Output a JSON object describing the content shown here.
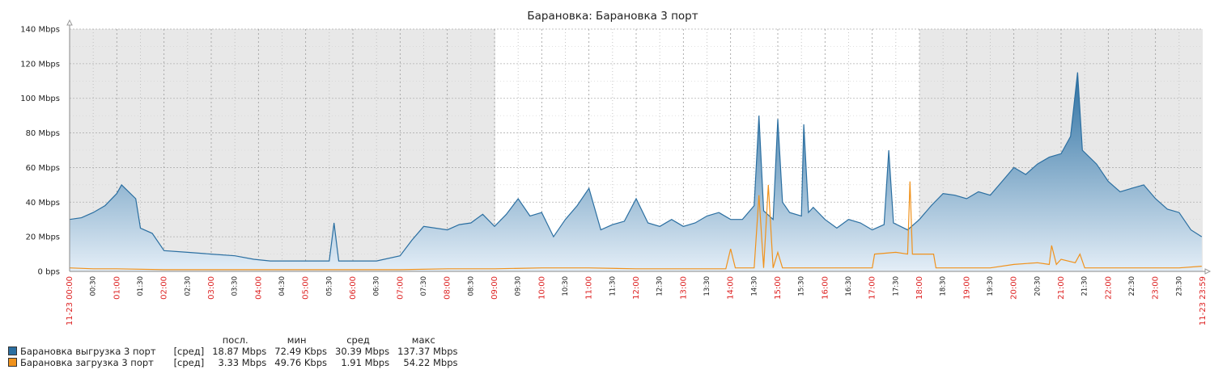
{
  "chart_data": {
    "type": "area",
    "title": "Барановка: Барановка 3 порт",
    "y_axis": {
      "min": 0,
      "max": 140,
      "unit": "Mbps",
      "ticks": [
        {
          "value": 0,
          "label": "0 bps"
        },
        {
          "value": 20,
          "label": "20 Mbps"
        },
        {
          "value": 40,
          "label": "40 Mbps"
        },
        {
          "value": 60,
          "label": "60 Mbps"
        },
        {
          "value": 80,
          "label": "80 Mbps"
        },
        {
          "value": 100,
          "label": "100 Mbps"
        },
        {
          "value": 120,
          "label": "120 Mbps"
        },
        {
          "value": 140,
          "label": "140 Mbps"
        }
      ]
    },
    "x_axis": {
      "min_hours": 0,
      "max_hours": 24,
      "start_label": "11-23 00:00",
      "end_label": "11-23 23:59",
      "tick_labels": [
        "00:30",
        "01:00",
        "01:30",
        "02:00",
        "02:30",
        "03:00",
        "03:30",
        "04:00",
        "04:30",
        "05:00",
        "05:30",
        "06:00",
        "06:30",
        "07:00",
        "07:30",
        "08:00",
        "08:30",
        "09:00",
        "09:30",
        "10:00",
        "10:30",
        "11:00",
        "11:30",
        "12:00",
        "12:30",
        "13:00",
        "13:30",
        "14:00",
        "14:30",
        "15:00",
        "15:30",
        "16:00",
        "16:30",
        "17:00",
        "17:30",
        "18:00",
        "18:30",
        "19:00",
        "19:30",
        "20:00",
        "20:30",
        "21:00",
        "21:30",
        "22:00",
        "22:30",
        "23:00",
        "23:30"
      ]
    },
    "shaded_periods": [
      {
        "from": "00:00",
        "to": "09:00"
      },
      {
        "from": "18:00",
        "to": "23:59"
      }
    ],
    "grid": true,
    "series": [
      {
        "name": "Барановка выгрузка 3 порт",
        "color": "#2b6fa1",
        "fill": "gradient-blue",
        "points": [
          [
            0,
            30
          ],
          [
            0.25,
            31
          ],
          [
            0.5,
            34
          ],
          [
            0.75,
            38
          ],
          [
            1,
            45
          ],
          [
            1.1,
            50
          ],
          [
            1.25,
            46
          ],
          [
            1.4,
            42
          ],
          [
            1.5,
            25
          ],
          [
            1.75,
            22
          ],
          [
            2,
            12
          ],
          [
            2.5,
            11
          ],
          [
            3,
            10
          ],
          [
            3.5,
            9
          ],
          [
            3.9,
            7
          ],
          [
            4.25,
            6
          ],
          [
            4.5,
            6
          ],
          [
            5,
            6
          ],
          [
            5.5,
            6
          ],
          [
            5.6,
            28
          ],
          [
            5.7,
            6
          ],
          [
            6,
            6
          ],
          [
            6.5,
            6
          ],
          [
            7,
            9
          ],
          [
            7.25,
            18
          ],
          [
            7.5,
            26
          ],
          [
            8,
            24
          ],
          [
            8.25,
            27
          ],
          [
            8.5,
            28
          ],
          [
            8.75,
            33
          ],
          [
            9,
            26
          ],
          [
            9.25,
            33
          ],
          [
            9.5,
            42
          ],
          [
            9.75,
            32
          ],
          [
            10,
            34
          ],
          [
            10.25,
            20
          ],
          [
            10.5,
            30
          ],
          [
            10.75,
            38
          ],
          [
            11,
            48
          ],
          [
            11.25,
            24
          ],
          [
            11.5,
            27
          ],
          [
            11.75,
            29
          ],
          [
            12,
            42
          ],
          [
            12.25,
            28
          ],
          [
            12.5,
            26
          ],
          [
            12.75,
            30
          ],
          [
            13,
            26
          ],
          [
            13.25,
            28
          ],
          [
            13.5,
            32
          ],
          [
            13.75,
            34
          ],
          [
            14,
            30
          ],
          [
            14.25,
            30
          ],
          [
            14.5,
            38
          ],
          [
            14.6,
            90
          ],
          [
            14.7,
            35
          ],
          [
            14.9,
            30
          ],
          [
            15,
            88
          ],
          [
            15.1,
            40
          ],
          [
            15.25,
            34
          ],
          [
            15.5,
            32
          ],
          [
            15.55,
            85
          ],
          [
            15.65,
            34
          ],
          [
            15.75,
            37
          ],
          [
            16,
            30
          ],
          [
            16.25,
            25
          ],
          [
            16.5,
            30
          ],
          [
            16.75,
            28
          ],
          [
            17,
            24
          ],
          [
            17.25,
            27
          ],
          [
            17.35,
            70
          ],
          [
            17.45,
            28
          ],
          [
            17.75,
            24
          ],
          [
            18,
            30
          ],
          [
            18.25,
            38
          ],
          [
            18.5,
            45
          ],
          [
            18.75,
            44
          ],
          [
            19,
            42
          ],
          [
            19.25,
            46
          ],
          [
            19.5,
            44
          ],
          [
            19.75,
            52
          ],
          [
            20,
            60
          ],
          [
            20.25,
            56
          ],
          [
            20.5,
            62
          ],
          [
            20.75,
            66
          ],
          [
            21,
            68
          ],
          [
            21.2,
            78
          ],
          [
            21.35,
            115
          ],
          [
            21.45,
            70
          ],
          [
            21.75,
            62
          ],
          [
            22,
            52
          ],
          [
            22.25,
            46
          ],
          [
            22.5,
            48
          ],
          [
            22.75,
            50
          ],
          [
            23,
            42
          ],
          [
            23.25,
            36
          ],
          [
            23.5,
            34
          ],
          [
            23.75,
            24
          ],
          [
            23.98,
            20
          ]
        ]
      },
      {
        "name": "Барановка загрузка 3 порт",
        "color": "#f0921c",
        "fill": "none",
        "points": [
          [
            0,
            2
          ],
          [
            0.5,
            1.5
          ],
          [
            1,
            1.5
          ],
          [
            2,
            1
          ],
          [
            3,
            1
          ],
          [
            4,
            1
          ],
          [
            5,
            1
          ],
          [
            6,
            1
          ],
          [
            7,
            1
          ],
          [
            8,
            1.5
          ],
          [
            9,
            1.5
          ],
          [
            10,
            2
          ],
          [
            11,
            2
          ],
          [
            12,
            1.5
          ],
          [
            13,
            1.5
          ],
          [
            13.9,
            1.5
          ],
          [
            14,
            13
          ],
          [
            14.1,
            2
          ],
          [
            14.5,
            2
          ],
          [
            14.6,
            44
          ],
          [
            14.7,
            2
          ],
          [
            14.8,
            50
          ],
          [
            14.9,
            2
          ],
          [
            15,
            11
          ],
          [
            15.1,
            2
          ],
          [
            16,
            2
          ],
          [
            17,
            2
          ],
          [
            17.05,
            10
          ],
          [
            17.5,
            11
          ],
          [
            17.75,
            10
          ],
          [
            17.8,
            52
          ],
          [
            17.85,
            10
          ],
          [
            18.3,
            10
          ],
          [
            18.35,
            2
          ],
          [
            19,
            2
          ],
          [
            19.5,
            2
          ],
          [
            20,
            4
          ],
          [
            20.5,
            5
          ],
          [
            20.75,
            4
          ],
          [
            20.8,
            15
          ],
          [
            20.9,
            4
          ],
          [
            21,
            7
          ],
          [
            21.3,
            5
          ],
          [
            21.4,
            10
          ],
          [
            21.5,
            2
          ],
          [
            22,
            2
          ],
          [
            22.5,
            2
          ],
          [
            23,
            2
          ],
          [
            23.5,
            2
          ],
          [
            23.98,
            3
          ]
        ]
      }
    ]
  },
  "legend": {
    "headers": {
      "last": "посл.",
      "min": "мин",
      "avg": "сред",
      "max": "макс"
    },
    "rows": [
      {
        "name": "Барановка выгрузка 3 порт",
        "agg": "[сред]",
        "last": "18.87 Mbps",
        "min": "72.49 Kbps",
        "avg": "30.39 Mbps",
        "max": "137.37 Mbps",
        "color": "#2b6fa1"
      },
      {
        "name": "Барановка загрузка 3 порт",
        "agg": "[сред]",
        "last": "3.33 Mbps",
        "min": "49.76 Kbps",
        "avg": "1.91 Mbps",
        "max": "54.22 Mbps",
        "color": "#f0921c"
      }
    ]
  }
}
